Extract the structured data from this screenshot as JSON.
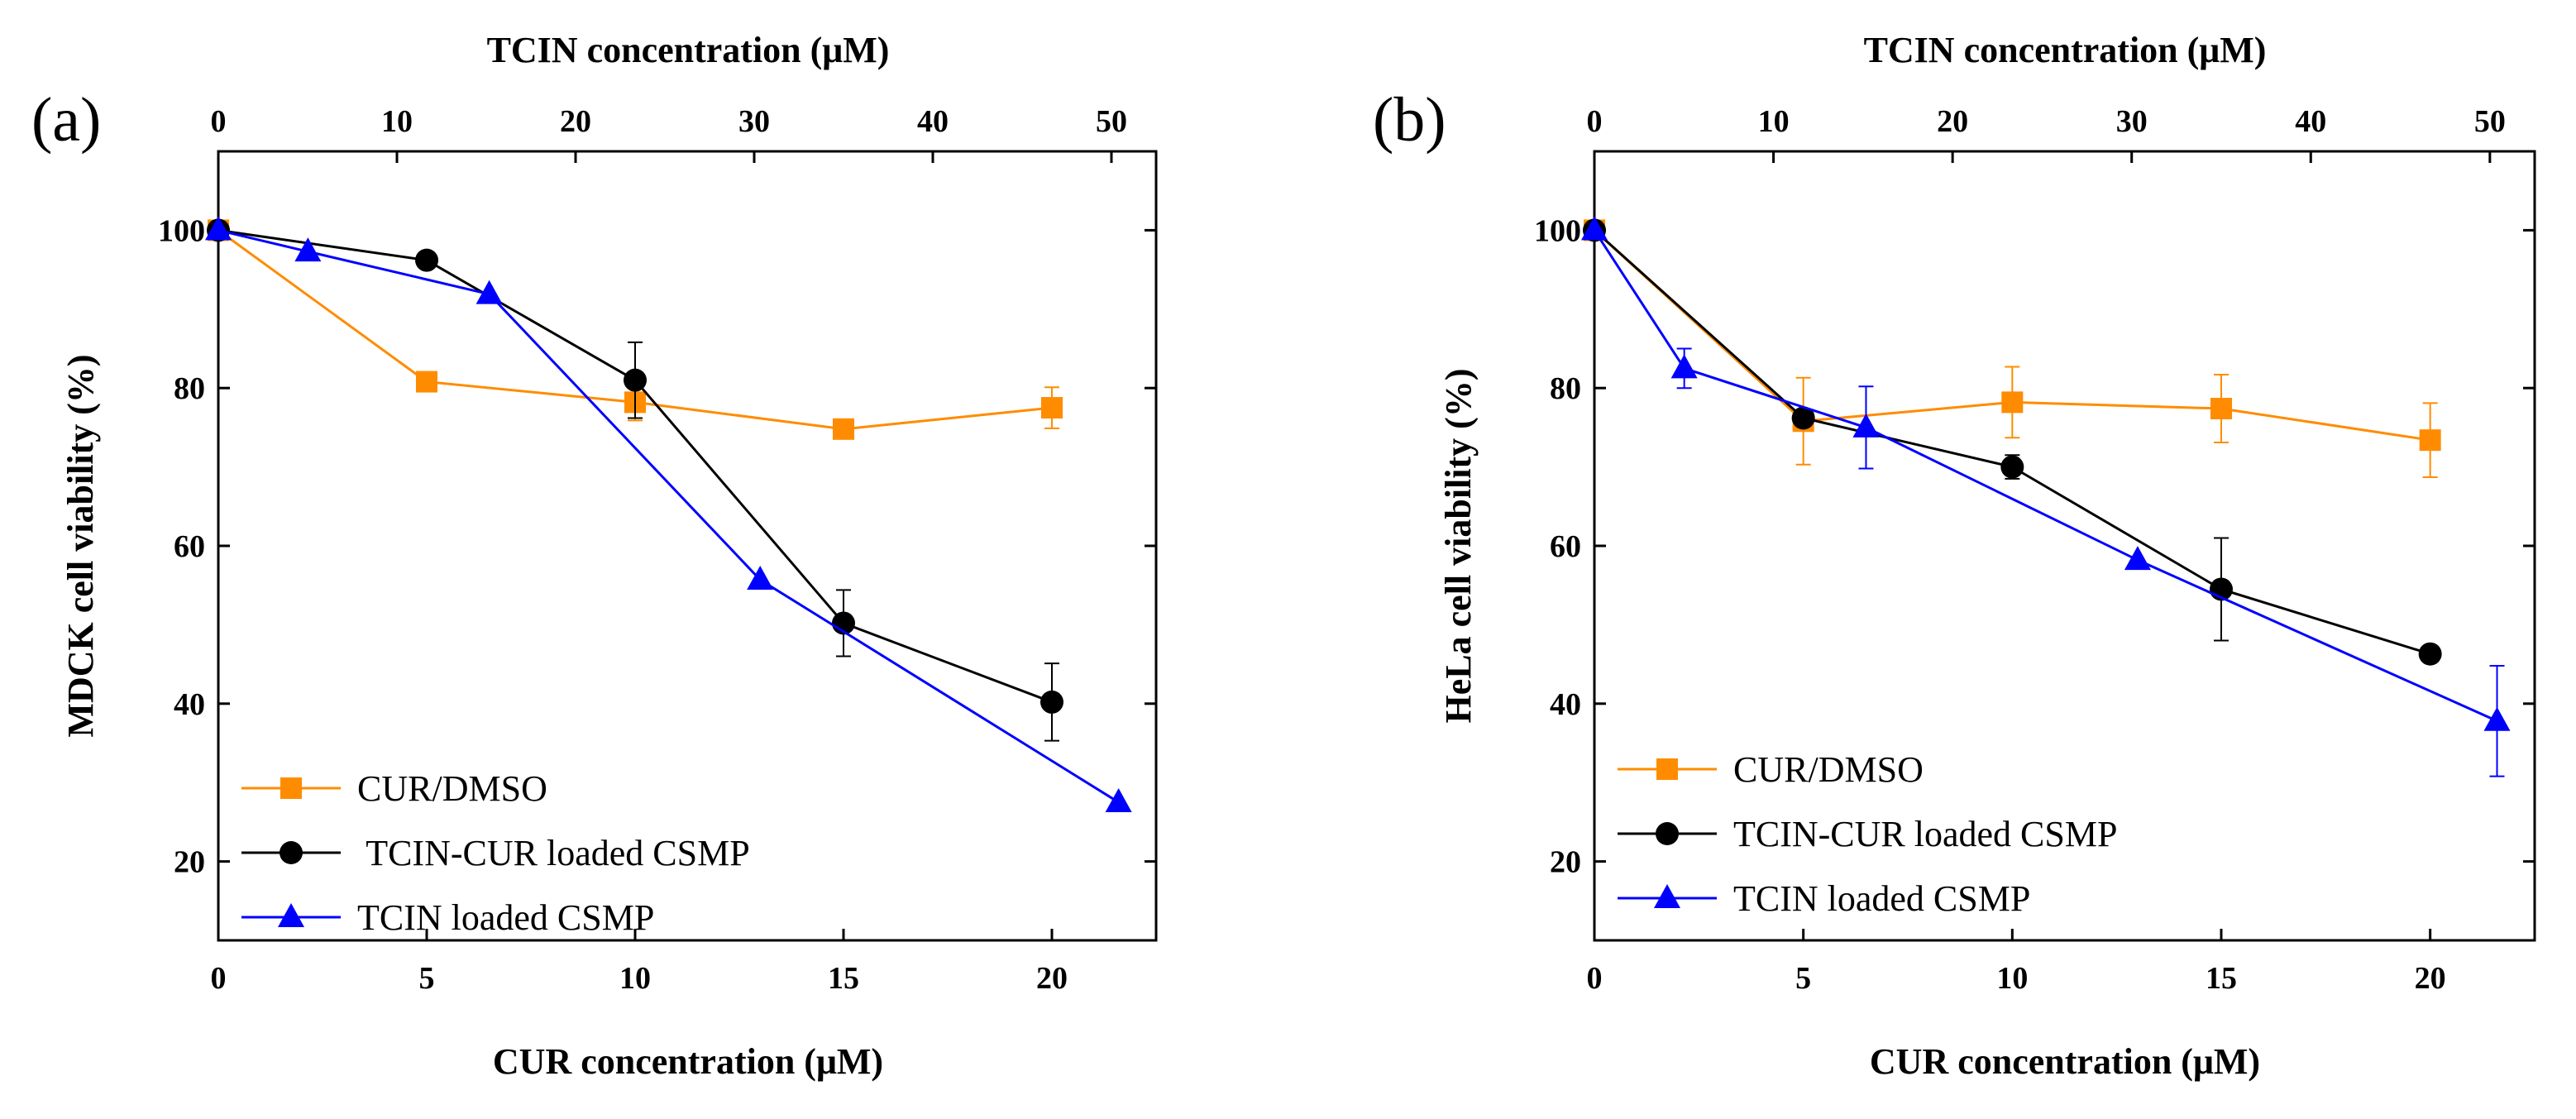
{
  "chart_data": [
    {
      "type": "line",
      "panel_label": "(a)",
      "xlabel": "CUR concentration (μM)",
      "x2label": "TCIN concentration (μM)",
      "ylabel": "MDCK cell viability (%)",
      "xlim": [
        0,
        22.5
      ],
      "x2lim": [
        0,
        52.5
      ],
      "ylim": [
        10,
        110
      ],
      "xticks": [
        "0",
        "5",
        "10",
        "15",
        "20"
      ],
      "x2ticks": [
        "0",
        "10",
        "20",
        "30",
        "40",
        "50"
      ],
      "yticks": [
        "20",
        "40",
        "60",
        "80",
        "100"
      ],
      "legend_position": "bottom-left",
      "series": [
        {
          "name": "CUR/DMSO",
          "marker": "square",
          "color": "#FF8C00",
          "x": [
            0,
            5,
            10,
            15,
            20
          ],
          "y": [
            100,
            80.8,
            78.2,
            74.8,
            77.5
          ],
          "err": [
            0,
            0,
            2.3,
            0,
            2.6
          ]
        },
        {
          "name": " TCIN-CUR loaded CSMP",
          "marker": "circle",
          "color": "#000000",
          "x": [
            0,
            5,
            10,
            15,
            20
          ],
          "y": [
            100,
            96.2,
            81,
            50.2,
            40.2
          ],
          "err": [
            0,
            0,
            4.8,
            4.2,
            4.9
          ]
        },
        {
          "name": "TCIN loaded CSMP",
          "marker": "triangle",
          "color": "#0000FF",
          "x": [
            0,
            2.15,
            6.5,
            13,
            21.6
          ],
          "y": [
            100,
            97.3,
            91.9,
            55.7,
            27.5
          ],
          "err": [
            0,
            0,
            0,
            0,
            0
          ]
        }
      ]
    },
    {
      "type": "line",
      "panel_label": "(b)",
      "xlabel": "CUR concentration (μM)",
      "x2label": "TCIN concentration (μM)",
      "ylabel": "HeLa cell viability (%)",
      "xlim": [
        0,
        22.5
      ],
      "x2lim": [
        0,
        52.5
      ],
      "ylim": [
        10,
        110
      ],
      "xticks": [
        "0",
        "5",
        "10",
        "15",
        "20"
      ],
      "x2ticks": [
        "0",
        "10",
        "20",
        "30",
        "40",
        "50"
      ],
      "yticks": [
        "20",
        "40",
        "60",
        "80",
        "100"
      ],
      "legend_position": "bottom-left",
      "series": [
        {
          "name": "CUR/DMSO",
          "marker": "square",
          "color": "#FF8C00",
          "x": [
            0,
            5,
            10,
            15,
            20
          ],
          "y": [
            100,
            75.8,
            78.2,
            77.4,
            73.4
          ],
          "err": [
            0,
            5.5,
            4.5,
            4.3,
            4.7
          ]
        },
        {
          "name": "TCIN-CUR loaded CSMP",
          "marker": "circle",
          "color": "#000000",
          "x": [
            0,
            5,
            10,
            15,
            20
          ],
          "y": [
            100,
            76.2,
            70,
            54.5,
            46.3
          ],
          "err": [
            0,
            0,
            1.5,
            6.5,
            0
          ]
        },
        {
          "name": "TCIN loaded CSMP",
          "marker": "triangle",
          "color": "#0000FF",
          "x": [
            0,
            2.15,
            6.5,
            13,
            21.6
          ],
          "y": [
            100,
            82.5,
            75,
            58.2,
            37.8
          ],
          "err": [
            0,
            2.5,
            5.2,
            0,
            7
          ]
        }
      ]
    }
  ]
}
